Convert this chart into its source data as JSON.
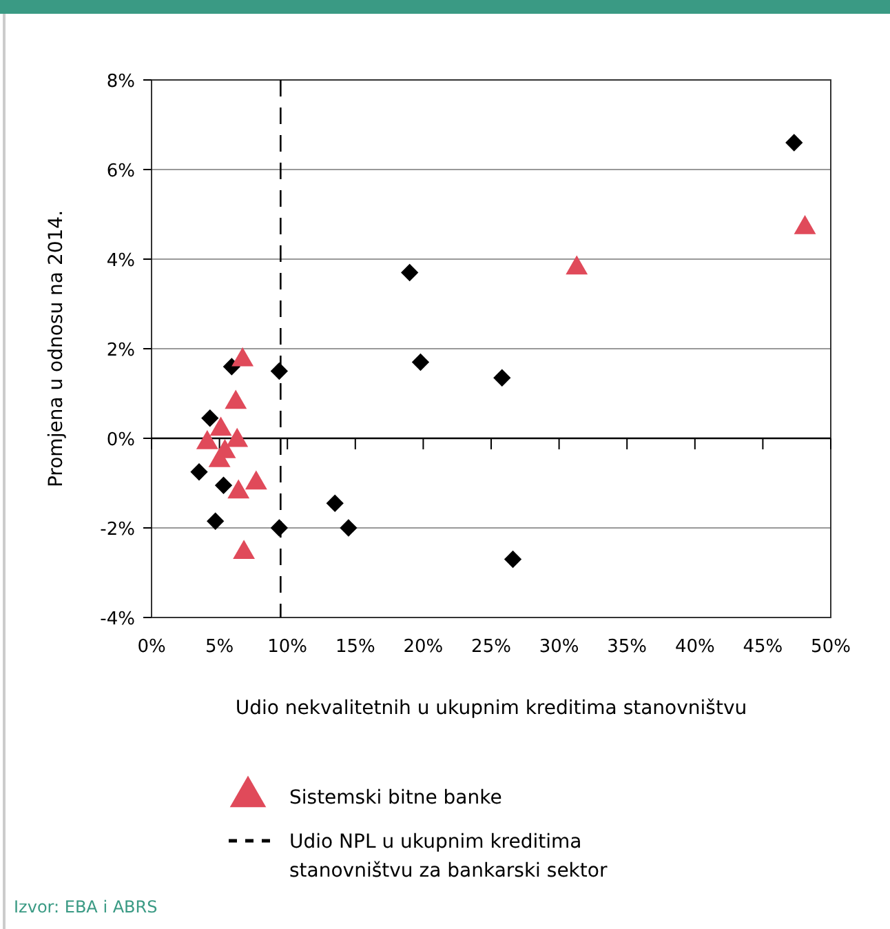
{
  "chart_data": {
    "type": "scatter",
    "xlabel": "Udio nekvalitetnih u ukupnim kreditima stanovništvu",
    "ylabel": "Promjena u odnosu na 2014.",
    "xlim": [
      0,
      50
    ],
    "xticks": [
      {
        "value": 0,
        "label": "0%"
      },
      {
        "value": 5,
        "label": "5%"
      },
      {
        "value": 10,
        "label": "10%"
      },
      {
        "value": 15,
        "label": "15%"
      },
      {
        "value": 20,
        "label": "20%"
      },
      {
        "value": 25,
        "label": "25%"
      },
      {
        "value": 30,
        "label": "30%"
      },
      {
        "value": 35,
        "label": "35%"
      },
      {
        "value": 40,
        "label": "40%"
      },
      {
        "value": 45,
        "label": "45%"
      },
      {
        "value": 50,
        "label": "50%"
      }
    ],
    "ylim": [
      -4,
      8
    ],
    "yticks": [
      {
        "value": -4,
        "label": "-4%"
      },
      {
        "value": -2,
        "label": "-2%"
      },
      {
        "value": 0,
        "label": "0%"
      },
      {
        "value": 2,
        "label": "2%"
      },
      {
        "value": 4,
        "label": "4%"
      },
      {
        "value": 6,
        "label": "6%"
      },
      {
        "value": 8,
        "label": "8%"
      }
    ],
    "grid": "y",
    "legend": "bottom",
    "series": [
      {
        "color": "#000000",
        "marker": "diamond",
        "x": [
          47.3,
          19.0,
          19.8,
          25.8,
          5.9,
          9.4,
          4.3,
          3.5,
          5.3,
          4.7,
          9.4,
          13.5,
          14.5,
          26.6
        ],
        "values": [
          6.6,
          3.7,
          1.7,
          1.35,
          1.6,
          1.5,
          0.45,
          -0.75,
          -1.05,
          -1.85,
          -2.0,
          -1.45,
          -2.0,
          -2.7
        ]
      },
      {
        "name": "Sistemski bitne banke",
        "color": "#e04a5a",
        "marker": "triangle",
        "x": [
          48.1,
          31.3,
          6.7,
          6.2,
          5.1,
          4.1,
          6.3,
          5.4,
          5.0,
          7.7,
          6.4,
          6.8
        ],
        "values": [
          4.7,
          3.8,
          1.75,
          0.8,
          0.2,
          -0.1,
          -0.05,
          -0.3,
          -0.5,
          -1.0,
          -1.2,
          -2.55
        ]
      }
    ],
    "ref_lines": [
      {
        "axis": "x",
        "value": 9.5,
        "label": "Udio NPL u ukupnim kreditima stanovništvu za bankarski sektor",
        "line_style": "dashed",
        "color": "#000000"
      }
    ],
    "annotations": [
      "Izvor: EBA i ABRS"
    ]
  }
}
